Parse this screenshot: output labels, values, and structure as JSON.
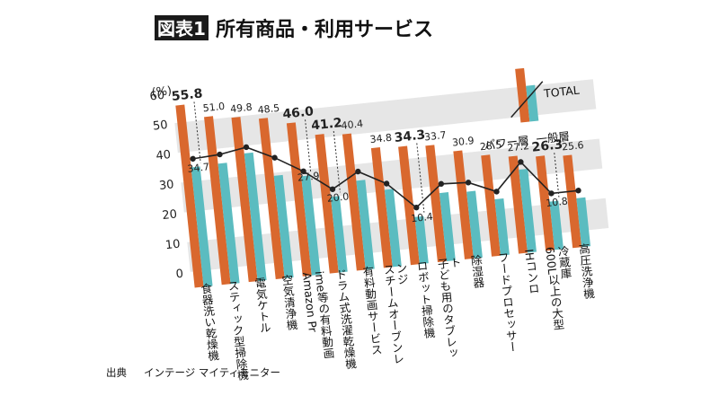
{
  "title": {
    "badge": "図表1",
    "text": "所有商品・利用サービス"
  },
  "source": {
    "prefix": "出典",
    "text": "インテージ マイティモニター"
  },
  "legend": {
    "total": "TOTAL",
    "power": "パワー層",
    "general": "一般層",
    "placement": "top-right"
  },
  "colors": {
    "power": "#d9682e",
    "general": "#5bbcc0",
    "total_line": "#222222",
    "band": "#e6e6e6",
    "badge_bg": "#1a1a1a"
  },
  "chart_data": {
    "type": "bar",
    "unit": "(%)",
    "ylim": [
      0,
      60
    ],
    "yticks": [
      0,
      10,
      20,
      30,
      40,
      50,
      60
    ],
    "categories": [
      "食器洗い乾燥機",
      "スティック型掃除機",
      "電気ケトル",
      "空気清浄機",
      "Amazon Prime等の有料動画",
      "ドラム式洗濯乾燥機",
      "有料動画サービス",
      "スチームオーブンレンジ",
      "ロボット掃除機",
      "子ども用のタブレット",
      "除湿器",
      "フードプロセッサー",
      "IHコンロ",
      "600L以上の大型冷蔵庫",
      "高圧洗浄機"
    ],
    "series": [
      {
        "name": "パワー層",
        "values": [
          55.8,
          51.0,
          49.8,
          48.5,
          46.0,
          41.2,
          40.4,
          34.8,
          34.3,
          33.7,
          30.9,
          28.5,
          27.2,
          26.3,
          25.6
        ],
        "labels": [
          "55.8",
          "51.0",
          "49.8",
          "48.5",
          "46.0",
          "41.2",
          "40.4",
          "34.8",
          "34.3",
          "33.7",
          "30.9",
          "28.5",
          "27.2",
          "26.3",
          "25.6"
        ]
      },
      {
        "name": "一般層",
        "values": [
          34.7,
          35.0,
          37.5,
          29.0,
          27.9,
          20.0,
          24.5,
          20.5,
          10.4,
          17.5,
          17.0,
          13.5,
          22.5,
          10.8,
          11.0
        ],
        "labels": [
          "34.7",
          "",
          "",
          "",
          "27.9",
          "20.0",
          "",
          "",
          "10.4",
          "",
          "",
          "",
          "",
          "10.8",
          ""
        ]
      },
      {
        "name": "TOTAL",
        "values": [
          37.5,
          38.0,
          39.5,
          35.0,
          29.5,
          22.5,
          27.5,
          22.5,
          13.5,
          20.5,
          20.0,
          16.0,
          25.0,
          13.5,
          13.5
        ]
      }
    ],
    "highlight_indices": [
      0,
      4,
      5,
      8,
      13
    ],
    "grid": "alternating-bands"
  }
}
